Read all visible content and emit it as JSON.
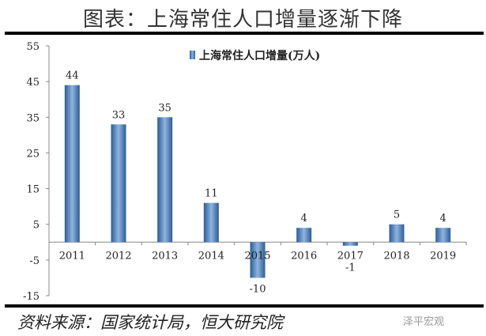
{
  "title": "图表：上海常住人口增量逐渐下降",
  "source": "资料来源：国家统计局，恒大研究院",
  "watermark": "泽平宏观",
  "chart_data": {
    "type": "bar",
    "categories": [
      "2011",
      "2012",
      "2013",
      "2014",
      "2015",
      "2016",
      "2017",
      "2018",
      "2019"
    ],
    "series": [
      {
        "name": "上海常住人口增量(万人)",
        "values": [
          44,
          33,
          35,
          11,
          -10,
          4,
          -1,
          5,
          4
        ],
        "color": "#4f81bd"
      }
    ],
    "data_labels": [
      "44",
      "33",
      "35",
      "11",
      "-10",
      "4",
      "-1",
      "5",
      "4"
    ],
    "yticks": [
      55,
      45,
      35,
      25,
      15,
      5,
      -5,
      -15
    ],
    "ylim": [
      -15,
      55
    ],
    "grid": false,
    "legend": "top-center"
  }
}
